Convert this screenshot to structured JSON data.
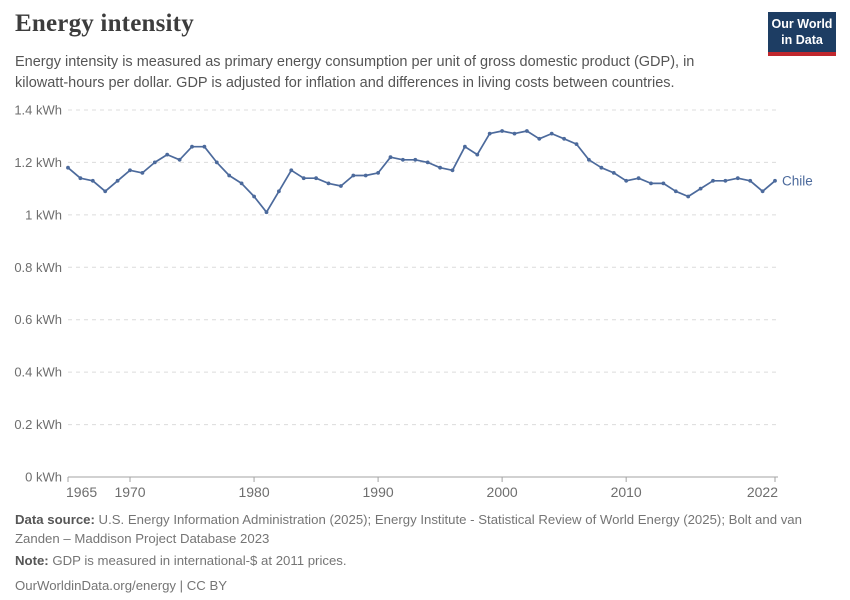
{
  "header": {
    "title": "Energy intensity",
    "subtitle": "Energy intensity is measured as primary energy consumption per unit of gross domestic product (GDP), in kilowatt-hours per dollar. GDP is adjusted for inflation and differences in living costs between countries.",
    "logo": {
      "line1": "Our World",
      "line2": "in Data",
      "bg_color": "#1d3d63",
      "accent_color": "#c0272d"
    }
  },
  "chart_data": {
    "type": "line",
    "title": "Energy intensity",
    "xlabel": "",
    "ylabel": "",
    "xlim": [
      1965,
      2022
    ],
    "ylim": [
      0,
      1.4
    ],
    "x_ticks": [
      1965,
      1970,
      1980,
      1990,
      2000,
      2010,
      2022
    ],
    "y_ticks": [
      0,
      0.2,
      0.4,
      0.6,
      0.8,
      1,
      1.2,
      1.4
    ],
    "y_tick_suffix": " kWh",
    "grid": "horizontal-dashed",
    "legend_position": "end-of-line-label",
    "series": [
      {
        "name": "Chile",
        "color": "#4C6A9C",
        "x": [
          1965,
          1966,
          1967,
          1968,
          1969,
          1970,
          1971,
          1972,
          1973,
          1974,
          1975,
          1976,
          1977,
          1978,
          1979,
          1980,
          1981,
          1982,
          1983,
          1984,
          1985,
          1986,
          1987,
          1988,
          1989,
          1990,
          1991,
          1992,
          1993,
          1994,
          1995,
          1996,
          1997,
          1998,
          1999,
          2000,
          2001,
          2002,
          2003,
          2004,
          2005,
          2006,
          2007,
          2008,
          2009,
          2010,
          2011,
          2012,
          2013,
          2014,
          2015,
          2016,
          2017,
          2018,
          2019,
          2020,
          2021,
          2022
        ],
        "values": [
          1.18,
          1.14,
          1.13,
          1.09,
          1.13,
          1.17,
          1.16,
          1.2,
          1.23,
          1.21,
          1.26,
          1.26,
          1.2,
          1.15,
          1.12,
          1.07,
          1.01,
          1.09,
          1.17,
          1.14,
          1.14,
          1.12,
          1.11,
          1.15,
          1.15,
          1.16,
          1.22,
          1.21,
          1.21,
          1.2,
          1.18,
          1.17,
          1.26,
          1.23,
          1.31,
          1.32,
          1.31,
          1.32,
          1.29,
          1.31,
          1.29,
          1.27,
          1.21,
          1.18,
          1.16,
          1.13,
          1.14,
          1.12,
          1.12,
          1.09,
          1.07,
          1.1,
          1.13,
          1.13,
          1.14,
          1.13,
          1.09,
          1.13
        ]
      }
    ]
  },
  "footer": {
    "data_source_label": "Data source:",
    "data_source_text": " U.S. Energy Information Administration (2025); Energy Institute - Statistical Review of World Energy (2025); Bolt and van Zanden – Maddison Project Database 2023",
    "note_label": "Note:",
    "note_text": " GDP is measured in international-$ at 2011 prices.",
    "link_text": "OurWorldinData.org/energy | CC BY"
  },
  "colors": {
    "line": "#4C6A9C",
    "grid": "#dcdcdc",
    "axis": "#a3a3a3",
    "tick_label": "#6e6e6e",
    "title": "#3d3d3d",
    "subtitle": "#555555"
  }
}
